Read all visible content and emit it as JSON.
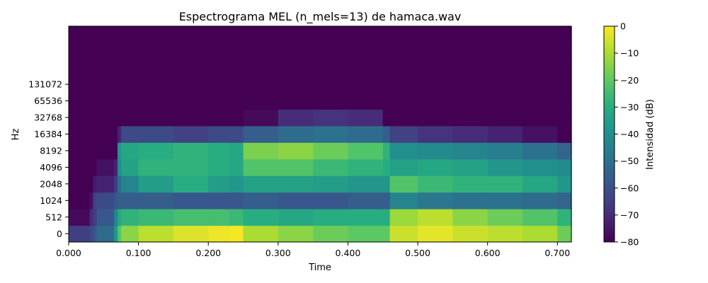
{
  "chart_data": {
    "type": "heatmap",
    "title": "Espectrograma MEL (n_mels=13) de hamaca.wav",
    "xlabel": "Time",
    "ylabel": "Hz",
    "xlim": [
      0.0,
      0.72
    ],
    "x_ticks": [
      "0.000",
      "0.100",
      "0.200",
      "0.300",
      "0.400",
      "0.500",
      "0.600",
      "0.700"
    ],
    "y_ticks": [
      "0",
      "512",
      "1024",
      "2048",
      "4096",
      "8192",
      "16384",
      "32768",
      "65536",
      "131072"
    ],
    "colorbar": {
      "label": "Intensidad (dB)",
      "range": [
        -80,
        0
      ],
      "ticks": [
        "0",
        "−10",
        "−20",
        "−30",
        "−40",
        "−50",
        "−60",
        "−70",
        "−80"
      ],
      "colormap": "viridis"
    },
    "mel_band_count": 13,
    "time_bins": [
      0.0,
      0.03,
      0.035,
      0.04,
      0.065,
      0.07,
      0.075,
      0.1,
      0.15,
      0.2,
      0.23,
      0.25,
      0.3,
      0.35,
      0.4,
      0.45,
      0.46,
      0.5,
      0.55,
      0.6,
      0.65,
      0.7,
      0.72
    ],
    "band_values_db": [
      [
        -65,
        -62,
        -58,
        -52,
        -38,
        -22,
        -14,
        -8,
        -4,
        -2,
        -1,
        -10,
        -14,
        -18,
        -20,
        -20,
        -6,
        -3,
        -6,
        -8,
        -10,
        -18,
        -30
      ],
      [
        -78,
        -70,
        -65,
        -58,
        -44,
        -32,
        -28,
        -26,
        -24,
        -24,
        -26,
        -30,
        -32,
        -30,
        -30,
        -30,
        -12,
        -8,
        -14,
        -18,
        -22,
        -28,
        -36
      ],
      [
        -80,
        -76,
        -64,
        -62,
        -58,
        -56,
        -56,
        -56,
        -58,
        -58,
        -58,
        -56,
        -58,
        -58,
        -56,
        -56,
        -44,
        -48,
        -50,
        -50,
        -52,
        -54,
        -58
      ],
      [
        -80,
        -80,
        -74,
        -72,
        -66,
        -52,
        -44,
        -36,
        -30,
        -36,
        -38,
        -34,
        -34,
        -36,
        -38,
        -38,
        -22,
        -26,
        -28,
        -28,
        -32,
        -38,
        -44
      ],
      [
        -80,
        -80,
        -80,
        -76,
        -72,
        -40,
        -34,
        -28,
        -28,
        -30,
        -32,
        -22,
        -22,
        -26,
        -28,
        -30,
        -34,
        -32,
        -34,
        -38,
        -40,
        -42,
        -46
      ],
      [
        -80,
        -80,
        -80,
        -80,
        -80,
        -38,
        -32,
        -30,
        -28,
        -30,
        -32,
        -16,
        -14,
        -18,
        -22,
        -28,
        -40,
        -42,
        -44,
        -46,
        -50,
        -54,
        -60
      ],
      [
        -80,
        -80,
        -80,
        -80,
        -80,
        -72,
        -62,
        -62,
        -64,
        -62,
        -62,
        -56,
        -52,
        -50,
        -52,
        -56,
        -64,
        -68,
        -70,
        -72,
        -76,
        -80,
        -80
      ],
      [
        -80,
        -80,
        -80,
        -80,
        -80,
        -80,
        -80,
        -80,
        -80,
        -80,
        -80,
        -78,
        -70,
        -68,
        -70,
        -80,
        -80,
        -80,
        -80,
        -80,
        -80,
        -80,
        -80
      ],
      [
        -80,
        -80,
        -80,
        -80,
        -80,
        -80,
        -80,
        -80,
        -80,
        -80,
        -80,
        -80,
        -80,
        -80,
        -80,
        -80,
        -80,
        -80,
        -80,
        -80,
        -80,
        -80,
        -80
      ],
      [
        -80,
        -80,
        -80,
        -80,
        -80,
        -80,
        -80,
        -80,
        -80,
        -80,
        -80,
        -80,
        -80,
        -80,
        -80,
        -80,
        -80,
        -80,
        -80,
        -80,
        -80,
        -80,
        -80
      ],
      [
        -80,
        -80,
        -80,
        -80,
        -80,
        -80,
        -80,
        -80,
        -80,
        -80,
        -80,
        -80,
        -80,
        -80,
        -80,
        -80,
        -80,
        -80,
        -80,
        -80,
        -80,
        -80,
        -80
      ],
      [
        -80,
        -80,
        -80,
        -80,
        -80,
        -80,
        -80,
        -80,
        -80,
        -80,
        -80,
        -80,
        -80,
        -80,
        -80,
        -80,
        -80,
        -80,
        -80,
        -80,
        -80,
        -80,
        -80
      ],
      [
        -80,
        -80,
        -80,
        -80,
        -80,
        -80,
        -80,
        -80,
        -80,
        -80,
        -80,
        -80,
        -80,
        -80,
        -80,
        -80,
        -80,
        -80,
        -80,
        -80,
        -80,
        -80,
        -80
      ]
    ]
  }
}
